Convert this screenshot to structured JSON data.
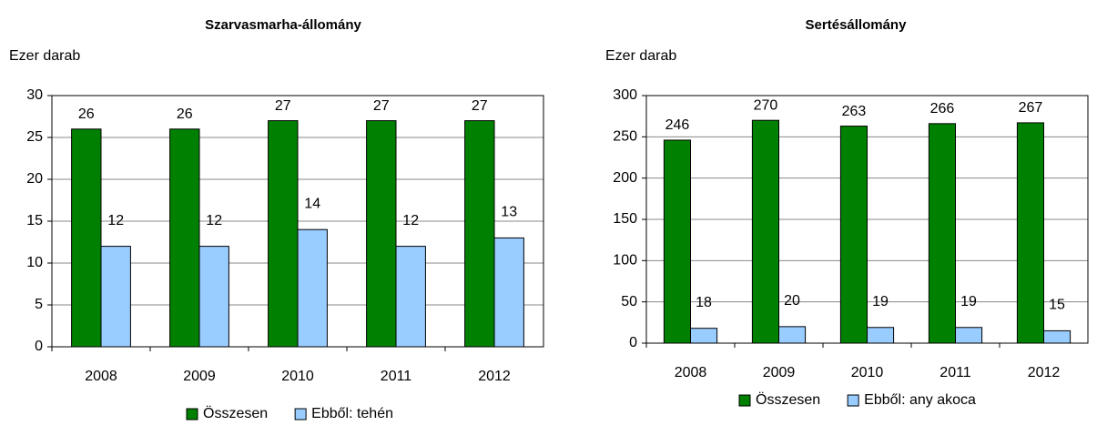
{
  "chart_data": [
    {
      "type": "bar",
      "title": "Szarvasmarha-állomány",
      "y_label": "Ezer darab",
      "categories": [
        "2008",
        "2009",
        "2010",
        "2011",
        "2012"
      ],
      "series": [
        {
          "name": "Összesen",
          "color": "#008000",
          "values": [
            26,
            26,
            27,
            27,
            27
          ]
        },
        {
          "name": "Ebből: tehén",
          "color": "#99ccff",
          "values": [
            12,
            12,
            14,
            12,
            13
          ]
        }
      ],
      "ylim": [
        0,
        30
      ],
      "yticks": [
        0,
        5,
        10,
        15,
        20,
        25,
        30
      ],
      "grid": true,
      "legend": "bottom"
    },
    {
      "type": "bar",
      "title": "Sertésállomány",
      "y_label": "Ezer darab",
      "categories": [
        "2008",
        "2009",
        "2010",
        "2011",
        "2012"
      ],
      "series": [
        {
          "name": "Összesen",
          "color": "#008000",
          "values": [
            246,
            270,
            263,
            266,
            267
          ]
        },
        {
          "name": "Ebből: any akoca",
          "color": "#99ccff",
          "values": [
            18,
            20,
            19,
            19,
            15
          ]
        }
      ],
      "ylim": [
        0,
        300
      ],
      "yticks": [
        0,
        50,
        100,
        150,
        200,
        250,
        300
      ],
      "grid": true,
      "legend": "bottom"
    }
  ]
}
